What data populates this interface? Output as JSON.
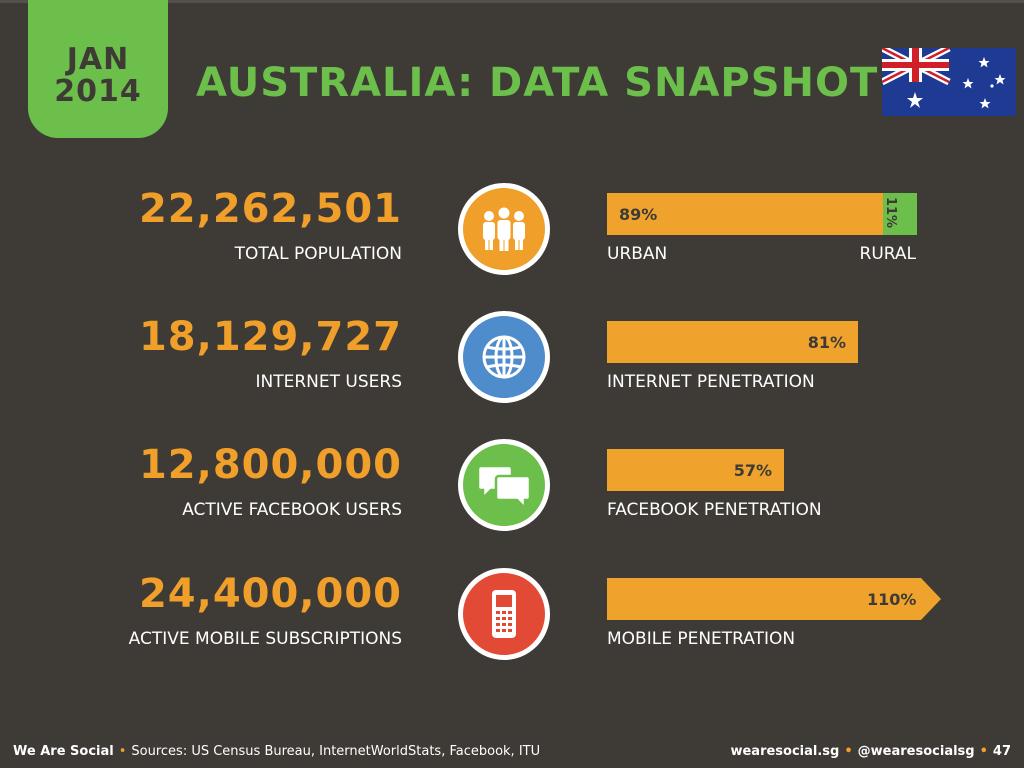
{
  "header": {
    "month": "JAN",
    "year": "2014",
    "title": "AUSTRALIA: DATA SNAPSHOT"
  },
  "flag": "australia-flag-icon",
  "colors": {
    "background": "#3e3a36",
    "accent_green": "#6cbf4a",
    "accent_orange": "#f0a32c",
    "icon_blue": "#4e8ccb",
    "icon_red": "#e24a36"
  },
  "rows": [
    {
      "value": "22,262,501",
      "label": "TOTAL POPULATION",
      "icon": "people-icon",
      "bar": {
        "percent": 89,
        "label": "89%",
        "secondary_percent": 11,
        "secondary_label": "11%"
      },
      "sublabel": "URBAN",
      "sublabel_right": "RURAL"
    },
    {
      "value": "18,129,727",
      "label": "INTERNET USERS",
      "icon": "globe-icon",
      "bar": {
        "percent": 81,
        "label": "81%"
      },
      "sublabel": "INTERNET PENETRATION"
    },
    {
      "value": "12,800,000",
      "label": "ACTIVE FACEBOOK USERS",
      "icon": "chat-bubbles-icon",
      "bar": {
        "percent": 57,
        "label": "57%"
      },
      "sublabel": "FACEBOOK PENETRATION"
    },
    {
      "value": "24,400,000",
      "label": "ACTIVE MOBILE SUBSCRIPTIONS",
      "icon": "mobile-phone-icon",
      "bar": {
        "percent": 110,
        "label": "110%"
      },
      "sublabel": "MOBILE PENETRATION"
    }
  ],
  "footer": {
    "brand": "We Are Social",
    "sources": "Sources: US Census Bureau, InternetWorldStats, Facebook, ITU",
    "website": "wearesocial.sg",
    "handle": "@wearesocialsg",
    "page": "47"
  }
}
